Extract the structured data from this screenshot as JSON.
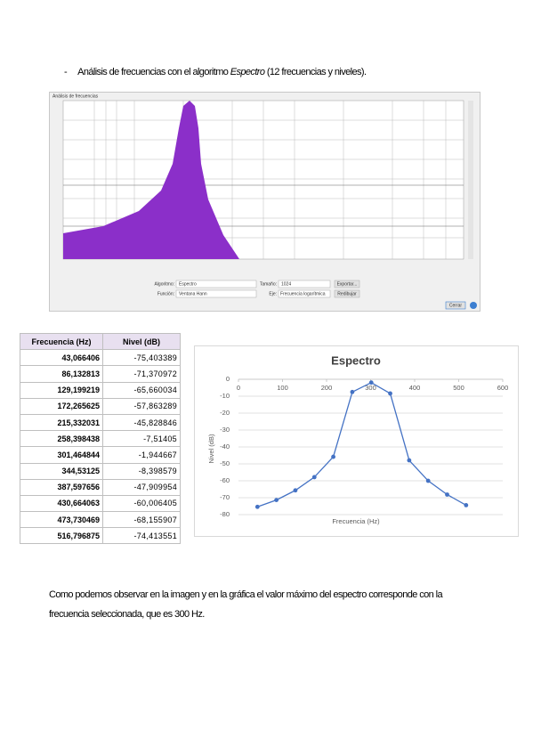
{
  "heading": {
    "bullet": "-",
    "before": "Análisis de frecuencias con el algoritmo ",
    "italic": "Espectro",
    "after": " (12 frecuencias y niveles)."
  },
  "screenshot": {
    "window_title": "Análisis de frecuencias",
    "algoritmo_label": "Algoritmo:",
    "algoritmo": "Espectro",
    "funcion_label": "Función:",
    "funcion": "Ventana Hann",
    "tamano_label": "Tamaño:",
    "tamano": "1024",
    "eje_label": "Eje:",
    "eje": "Frecuencia logarítmica",
    "exportar": "Exportar...",
    "redibujar": "Redibujar",
    "cerrar": "Cerrar"
  },
  "table": {
    "header": [
      "Frecuencia (Hz)",
      "Nivel (dB)"
    ],
    "rows": [
      [
        "43,066406",
        "-75,403389"
      ],
      [
        "86,132813",
        "-71,370972"
      ],
      [
        "129,199219",
        "-65,660034"
      ],
      [
        "172,265625",
        "-57,863289"
      ],
      [
        "215,332031",
        "-45,828846"
      ],
      [
        "258,398438",
        "-7,51405"
      ],
      [
        "301,464844",
        "-1,944667"
      ],
      [
        "344,53125",
        "-8,398579"
      ],
      [
        "387,597656",
        "-47,909954"
      ],
      [
        "430,664063",
        "-60,006405"
      ],
      [
        "473,730469",
        "-68,155907"
      ],
      [
        "516,796875",
        "-74,413551"
      ]
    ]
  },
  "chart_data": {
    "type": "line",
    "title": "Espectro",
    "x_label": "Frecuencia (Hz)",
    "y_label": "Nivel (dB)",
    "x": [
      43.066406,
      86.132813,
      129.199219,
      172.265625,
      215.332031,
      258.398438,
      301.464844,
      344.53125,
      387.597656,
      430.664063,
      473.730469,
      516.796875
    ],
    "series": [
      {
        "color": "#4472c4",
        "values": [
          -75.403389,
          -71.370972,
          -65.660034,
          -57.863289,
          -45.828846,
          -7.51405,
          -1.944667,
          -8.398579,
          -47.909954,
          -60.006405,
          -68.155907,
          -74.413551
        ]
      }
    ],
    "xlim": [
      0,
      600
    ],
    "xticks": [
      0,
      100,
      200,
      300,
      400,
      500,
      600
    ],
    "ylim": [
      -80,
      0
    ],
    "yticks": [
      0,
      -10,
      -20,
      -30,
      -40,
      -50,
      -60,
      -70,
      -80
    ],
    "grid": true,
    "x_axis_position": "top"
  },
  "paragraph": {
    "lines": [
      "Como podemos observar en la imagen y en la gráfica el valor máximo del espectro corresponde con la",
      "frecuencia seleccionada, que es 300 Hz."
    ]
  }
}
